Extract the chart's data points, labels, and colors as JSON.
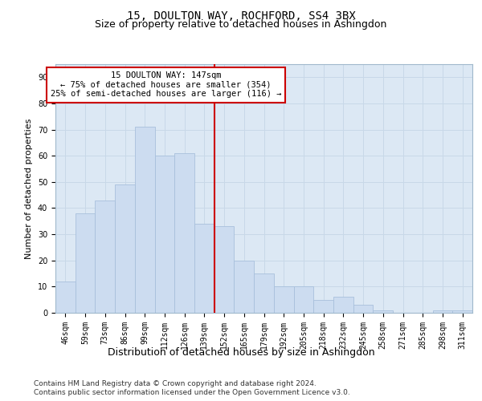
{
  "title": "15, DOULTON WAY, ROCHFORD, SS4 3BX",
  "subtitle": "Size of property relative to detached houses in Ashingdon",
  "xlabel": "Distribution of detached houses by size in Ashingdon",
  "ylabel": "Number of detached properties",
  "categories": [
    "46sqm",
    "59sqm",
    "73sqm",
    "86sqm",
    "99sqm",
    "112sqm",
    "126sqm",
    "139sqm",
    "152sqm",
    "165sqm",
    "179sqm",
    "192sqm",
    "205sqm",
    "218sqm",
    "232sqm",
    "245sqm",
    "258sqm",
    "271sqm",
    "285sqm",
    "298sqm",
    "311sqm"
  ],
  "values": [
    12,
    38,
    43,
    49,
    71,
    60,
    61,
    34,
    33,
    20,
    15,
    10,
    10,
    5,
    6,
    3,
    1,
    0,
    0,
    1,
    1
  ],
  "bar_color": "#ccdcf0",
  "bar_edgecolor": "#a8c0dc",
  "vline_color": "#cc0000",
  "annotation_text": "15 DOULTON WAY: 147sqm\n← 75% of detached houses are smaller (354)\n25% of semi-detached houses are larger (116) →",
  "annotation_box_color": "#ffffff",
  "annotation_box_edgecolor": "#cc0000",
  "ylim": [
    0,
    95
  ],
  "yticks": [
    0,
    10,
    20,
    30,
    40,
    50,
    60,
    70,
    80,
    90
  ],
  "grid_color": "#c8d8e8",
  "background_color": "#dce8f4",
  "footer_line1": "Contains HM Land Registry data © Crown copyright and database right 2024.",
  "footer_line2": "Contains public sector information licensed under the Open Government Licence v3.0.",
  "title_fontsize": 10,
  "subtitle_fontsize": 9,
  "xlabel_fontsize": 9,
  "ylabel_fontsize": 8,
  "tick_fontsize": 7,
  "annotation_fontsize": 7.5,
  "footer_fontsize": 6.5
}
